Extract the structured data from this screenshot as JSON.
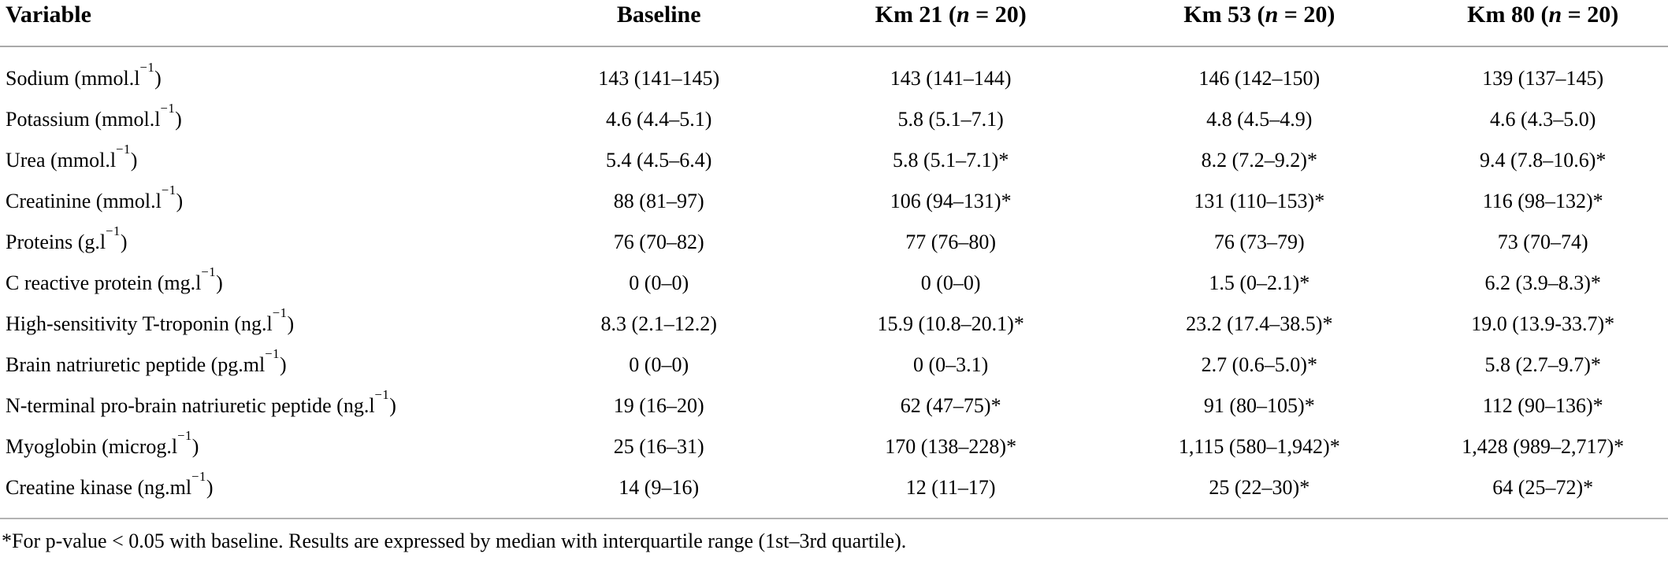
{
  "page": {
    "background_color": "#ffffff",
    "text_color": "#000000",
    "rule_color": "#a9a9a9"
  },
  "table": {
    "columns": [
      {
        "label": "Variable"
      },
      {
        "label": "Baseline"
      },
      {
        "pre": "Km 21 (",
        "n": "n",
        "post": " = 20)"
      },
      {
        "pre": "Km 53 (",
        "n": "n",
        "post": " = 20)"
      },
      {
        "pre": "Km 80 (",
        "n": "n",
        "post": " = 20)"
      }
    ],
    "rows": [
      {
        "label_pre": "Sodium (mmol.l",
        "label_sup": "−1",
        "label_post": ")",
        "values": [
          "143 (141–145)",
          "143 (141–144)",
          "146 (142–150)",
          "139 (137–145)"
        ]
      },
      {
        "label_pre": "Potassium (mmol.l",
        "label_sup": "−1",
        "label_post": ")",
        "values": [
          "4.6 (4.4–5.1)",
          "5.8 (5.1–7.1)",
          "4.8 (4.5–4.9)",
          "4.6 (4.3–5.0)"
        ]
      },
      {
        "label_pre": "Urea (mmol.l",
        "label_sup": "−1",
        "label_post": ")",
        "values": [
          "5.4 (4.5–6.4)",
          "5.8 (5.1–7.1)*",
          "8.2 (7.2–9.2)*",
          "9.4 (7.8–10.6)*"
        ]
      },
      {
        "label_pre": "Creatinine (mmol.l",
        "label_sup": "−1",
        "label_post": ")",
        "values": [
          "88 (81–97)",
          "106 (94–131)*",
          "131 (110–153)*",
          "116 (98–132)*"
        ]
      },
      {
        "label_pre": "Proteins (g.l",
        "label_sup": "−1",
        "label_post": ")",
        "values": [
          "76 (70–82)",
          "77 (76–80)",
          "76 (73–79)",
          "73 (70–74)"
        ]
      },
      {
        "label_pre": "C reactive protein (mg.l",
        "label_sup": "−1",
        "label_post": ")",
        "values": [
          "0 (0–0)",
          "0 (0–0)",
          "1.5 (0–2.1)*",
          "6.2 (3.9–8.3)*"
        ]
      },
      {
        "label_pre": "High-sensitivity T-troponin (ng.l",
        "label_sup": "−1",
        "label_post": ")",
        "values": [
          "8.3 (2.1–12.2)",
          "15.9 (10.8–20.1)*",
          "23.2 (17.4–38.5)*",
          "19.0 (13.9-33.7)*"
        ]
      },
      {
        "label_pre": "Brain natriuretic peptide (pg.ml",
        "label_sup": "−1",
        "label_post": ")",
        "values": [
          "0 (0–0)",
          "0 (0–3.1)",
          "2.7 (0.6–5.0)*",
          "5.8 (2.7–9.7)*"
        ]
      },
      {
        "label_pre": "N-terminal pro-brain natriuretic peptide (ng.l",
        "label_sup": "−1",
        "label_post": ")",
        "values": [
          "19 (16–20)",
          "62 (47–75)*",
          "91 (80–105)*",
          "112 (90–136)*"
        ]
      },
      {
        "label_pre": "Myoglobin (microg.l",
        "label_sup": "−1",
        "label_post": ")",
        "values": [
          "25 (16–31)",
          "170 (138–228)*",
          "1,115 (580–1,942)*",
          "1,428 (989–2,717)*"
        ]
      },
      {
        "label_pre": "Creatine kinase (ng.ml",
        "label_sup": "−1",
        "label_post": ")",
        "values": [
          "14 (9–16)",
          "12 (11–17)",
          "25 (22–30)*",
          "64 (25–72)*"
        ]
      }
    ]
  },
  "footnote": {
    "marker": "*",
    "text": "For p-value < 0.05 with baseline. Results are expressed by median with interquartile range (1st–3rd quartile)."
  }
}
